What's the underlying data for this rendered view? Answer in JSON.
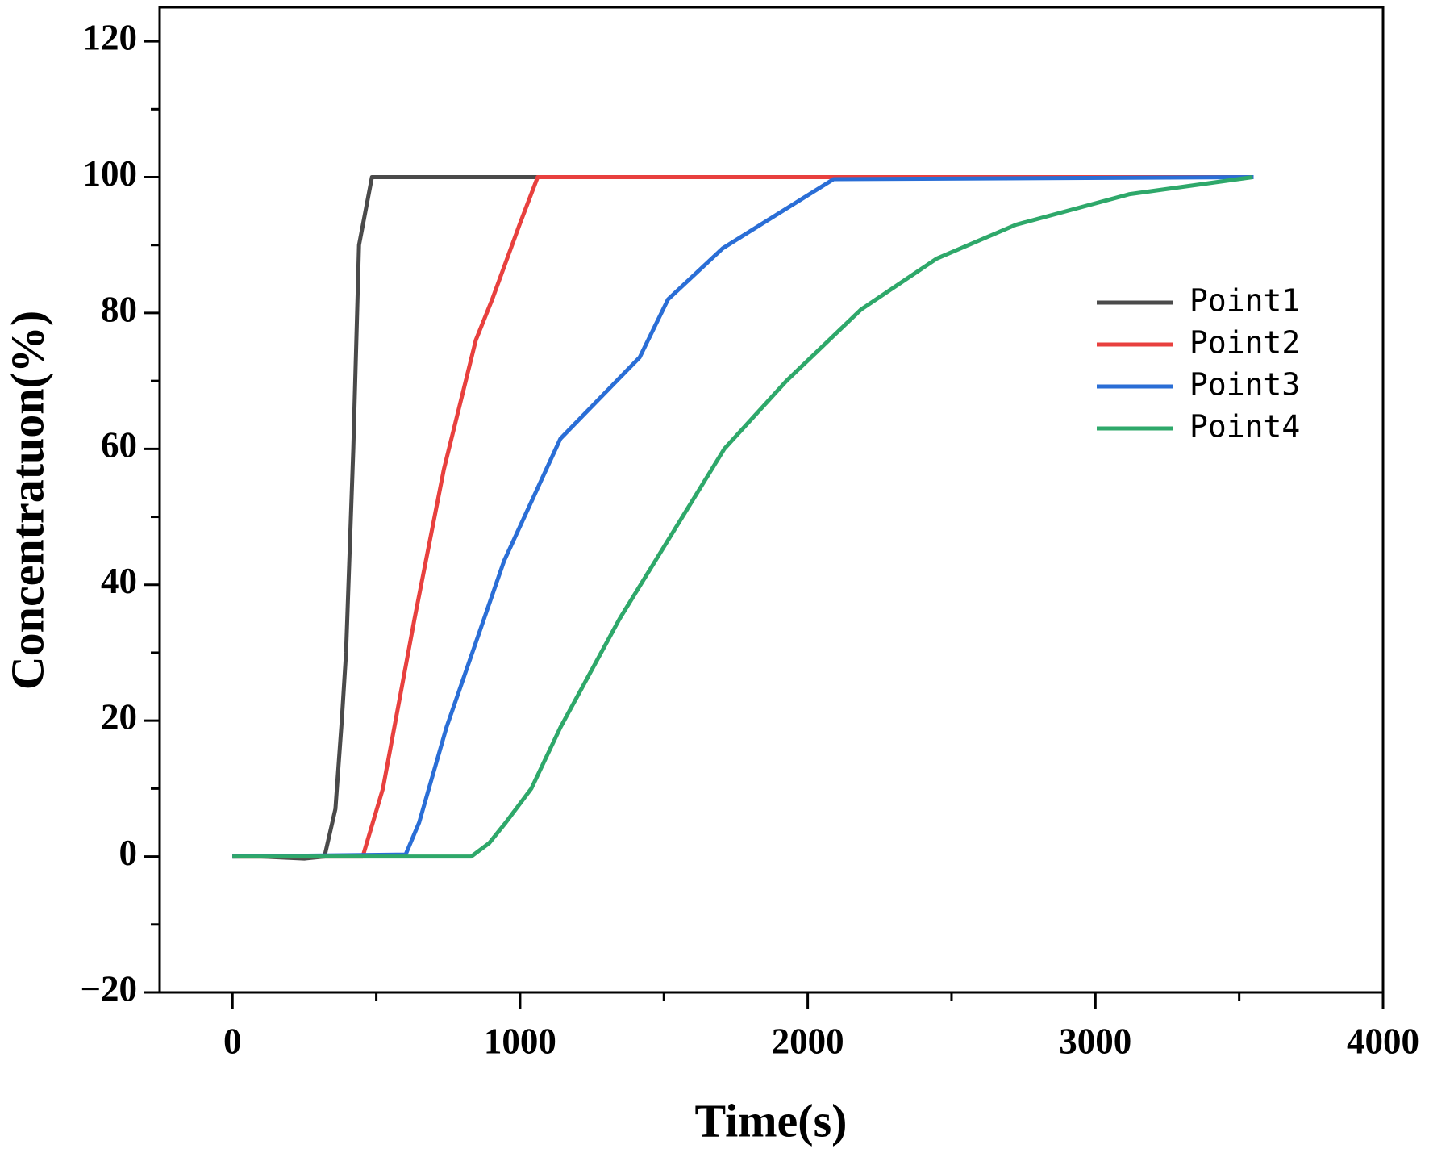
{
  "chart_data": {
    "type": "line",
    "x_label": "Time(s)",
    "y_label": "Concentratuon(%)",
    "xlim": [
      -253,
      4000
    ],
    "ylim": [
      -20,
      125
    ],
    "xticks": [
      0,
      1000,
      2000,
      3000,
      4000
    ],
    "yticks": [
      {
        "value": -20,
        "label": "−20"
      },
      0,
      20,
      40,
      60,
      80,
      100,
      120
    ],
    "legend": "upper right",
    "series": [
      {
        "name": "Point1",
        "color": "#4a4a4a",
        "x": [
          0,
          100,
          250,
          320,
          358,
          380,
          395,
          420,
          440,
          485,
          3550
        ],
        "values": [
          0,
          0,
          -0.3,
          0,
          7,
          20,
          30,
          60,
          90,
          100,
          100
        ]
      },
      {
        "name": "Point2",
        "color": "#e8403e",
        "x": [
          0,
          453,
          523,
          633,
          735,
          846,
          903,
          998,
          1061,
          3550
        ],
        "values": [
          0,
          0,
          10,
          35,
          57,
          76,
          82,
          93,
          100,
          100
        ]
      },
      {
        "name": "Point3",
        "color": "#2a6ed6",
        "x": [
          0,
          602,
          649,
          744,
          944,
          1140,
          1416,
          1514,
          1704,
          2090,
          3550
        ],
        "values": [
          0,
          0.3,
          5,
          19,
          43.5,
          61.5,
          73.5,
          82,
          89.5,
          99.7,
          100
        ]
      },
      {
        "name": "Point4",
        "color": "#2ea86a",
        "x": [
          0,
          830,
          893,
          950,
          1039,
          1140,
          1346,
          1710,
          1926,
          2185,
          2448,
          2724,
          3119,
          3547
        ],
        "values": [
          0,
          0,
          2,
          5,
          10,
          19,
          35,
          60,
          70,
          80.5,
          88,
          93,
          97.5,
          100
        ]
      }
    ]
  }
}
